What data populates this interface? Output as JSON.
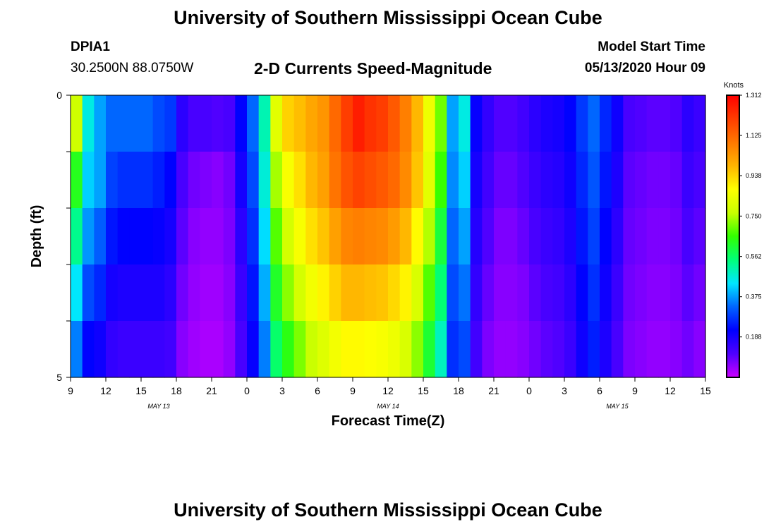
{
  "header": {
    "title": "University of Southern Mississippi Ocean Cube",
    "station": "DPIA1",
    "coords": "30.2500N 88.0750W",
    "subtitle": "2-D Currents Speed-Magnitude",
    "model_start_label": "Model Start Time",
    "model_start_value": "05/13/2020 Hour 09"
  },
  "footer": {
    "title": "University of Southern Mississippi Ocean Cube"
  },
  "chart_data": {
    "type": "heatmap",
    "title": "2-D Currents Speed-Magnitude",
    "xlabel": "Forecast Time(Z)",
    "ylabel": "Depth (ft)",
    "x_hours": [
      0,
      1,
      2,
      3,
      4,
      5,
      6,
      7,
      8,
      9,
      10,
      11,
      12,
      13,
      14,
      15,
      16,
      17,
      18,
      19,
      20,
      21,
      22,
      23,
      24,
      25,
      26,
      27,
      28,
      29,
      30,
      31,
      32,
      33,
      34,
      35,
      36,
      37,
      38,
      39,
      40,
      41,
      42,
      43,
      44,
      45,
      46,
      47,
      48,
      49,
      50,
      51,
      52,
      53,
      54
    ],
    "x_ticks": [
      "9",
      "12",
      "15",
      "18",
      "21",
      "0",
      "3",
      "6",
      "9",
      "12",
      "15",
      "18",
      "21",
      "0",
      "3",
      "6",
      "9",
      "12",
      "15"
    ],
    "date_labels": [
      {
        "label": "MAY 13",
        "hour": 7.5
      },
      {
        "label": "MAY 14",
        "hour": 27
      },
      {
        "label": "MAY 15",
        "hour": 46.5
      }
    ],
    "y_depth_bands": [
      "0-1",
      "1-2",
      "2-3",
      "3-4",
      "4-5"
    ],
    "y_tick_labels": [
      "0",
      "5"
    ],
    "ylim": [
      0,
      5
    ],
    "colorbar": {
      "unit": "Knots",
      "min": 0.0,
      "max": 1.312,
      "tick_labels": [
        "1.312",
        "1.125",
        "0.938",
        "0.750",
        "0.562",
        "0.375",
        "0.188"
      ],
      "colors": [
        "#cc00ff",
        "#5000ff",
        "#0000ff",
        "#0064ff",
        "#00e6ff",
        "#00ff78",
        "#32ff00",
        "#c8ff00",
        "#ffff00",
        "#ffb400",
        "#ff7800",
        "#ff3c00",
        "#ff0000"
      ]
    },
    "speed_knots": [
      [
        0.78,
        0.46,
        0.38,
        0.33,
        0.33,
        0.33,
        0.33,
        0.3,
        0.28,
        0.16,
        0.12,
        0.12,
        0.11,
        0.12,
        0.22,
        0.33,
        0.5,
        0.82,
        0.94,
        0.97,
        1.01,
        1.04,
        1.12,
        1.2,
        1.26,
        1.22,
        1.2,
        1.15,
        1.08,
        0.98,
        0.84,
        0.7,
        0.38,
        0.46,
        0.21,
        0.15,
        0.11,
        0.11,
        0.13,
        0.16,
        0.18,
        0.19,
        0.22,
        0.28,
        0.33,
        0.26,
        0.2,
        0.12,
        0.11,
        0.1,
        0.1,
        0.11,
        0.16,
        0.14,
        0.14
      ],
      [
        0.63,
        0.42,
        0.38,
        0.29,
        0.27,
        0.27,
        0.27,
        0.25,
        0.22,
        0.12,
        0.08,
        0.07,
        0.06,
        0.08,
        0.19,
        0.3,
        0.47,
        0.74,
        0.86,
        0.92,
        0.98,
        1.02,
        1.1,
        1.16,
        1.19,
        1.17,
        1.15,
        1.12,
        1.06,
        0.96,
        0.82,
        0.66,
        0.36,
        0.42,
        0.19,
        0.13,
        0.09,
        0.09,
        0.11,
        0.14,
        0.16,
        0.17,
        0.2,
        0.26,
        0.31,
        0.24,
        0.18,
        0.1,
        0.09,
        0.08,
        0.08,
        0.09,
        0.14,
        0.12,
        0.12
      ],
      [
        0.53,
        0.37,
        0.32,
        0.24,
        0.22,
        0.22,
        0.22,
        0.21,
        0.19,
        0.1,
        0.06,
        0.05,
        0.05,
        0.07,
        0.16,
        0.27,
        0.43,
        0.68,
        0.79,
        0.86,
        0.92,
        0.96,
        1.02,
        1.07,
        1.08,
        1.07,
        1.06,
        1.03,
        0.98,
        0.88,
        0.75,
        0.6,
        0.33,
        0.38,
        0.17,
        0.11,
        0.07,
        0.07,
        0.09,
        0.12,
        0.14,
        0.15,
        0.18,
        0.24,
        0.29,
        0.22,
        0.16,
        0.09,
        0.08,
        0.07,
        0.07,
        0.08,
        0.12,
        0.1,
        0.1
      ],
      [
        0.44,
        0.3,
        0.26,
        0.19,
        0.18,
        0.18,
        0.18,
        0.18,
        0.16,
        0.08,
        0.05,
        0.04,
        0.04,
        0.06,
        0.14,
        0.24,
        0.39,
        0.62,
        0.72,
        0.79,
        0.85,
        0.89,
        0.94,
        0.98,
        0.98,
        0.97,
        0.96,
        0.93,
        0.89,
        0.8,
        0.68,
        0.55,
        0.3,
        0.34,
        0.15,
        0.09,
        0.06,
        0.06,
        0.07,
        0.1,
        0.12,
        0.13,
        0.16,
        0.22,
        0.27,
        0.2,
        0.14,
        0.08,
        0.07,
        0.06,
        0.06,
        0.07,
        0.1,
        0.08,
        0.08
      ],
      [
        0.35,
        0.22,
        0.2,
        0.15,
        0.14,
        0.14,
        0.14,
        0.14,
        0.13,
        0.06,
        0.04,
        0.03,
        0.03,
        0.05,
        0.12,
        0.21,
        0.35,
        0.56,
        0.64,
        0.71,
        0.77,
        0.81,
        0.85,
        0.88,
        0.88,
        0.87,
        0.86,
        0.84,
        0.8,
        0.72,
        0.61,
        0.49,
        0.27,
        0.3,
        0.13,
        0.07,
        0.05,
        0.05,
        0.06,
        0.08,
        0.1,
        0.11,
        0.14,
        0.2,
        0.25,
        0.18,
        0.12,
        0.07,
        0.06,
        0.05,
        0.05,
        0.06,
        0.08,
        0.06,
        0.06
      ]
    ]
  }
}
